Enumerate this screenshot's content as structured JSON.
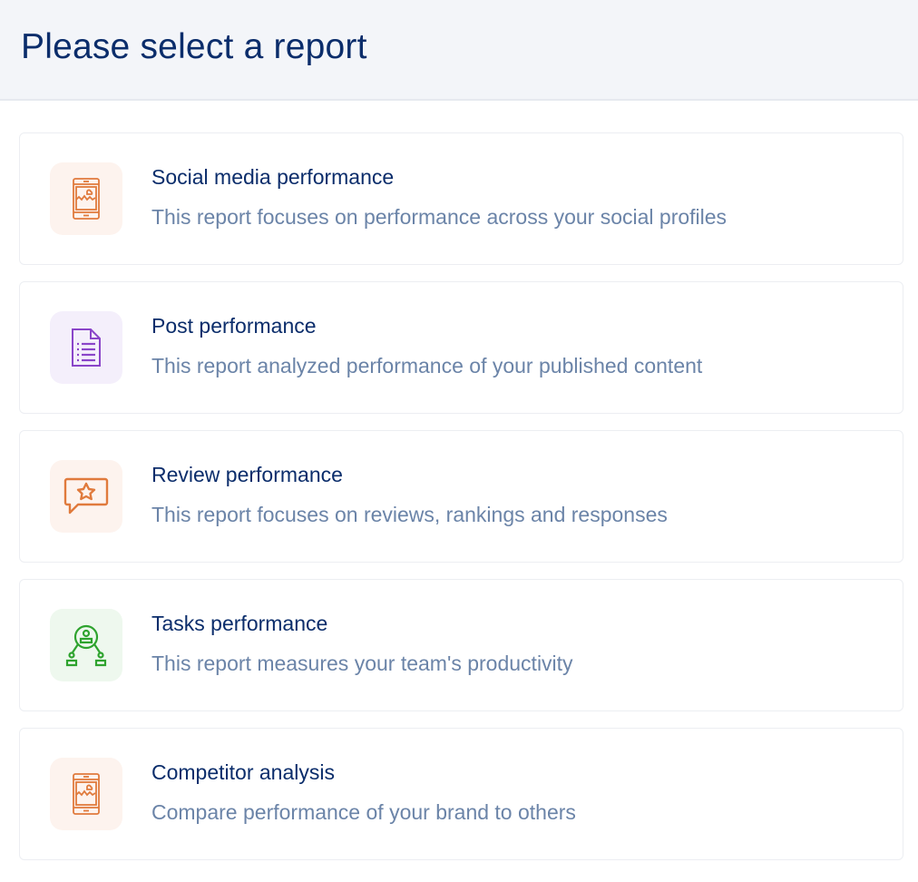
{
  "header": {
    "title": "Please select a report"
  },
  "reports": [
    {
      "title": "Social media performance",
      "description": "This report focuses on performance across your social profiles",
      "icon": "tablet-image-icon",
      "color": "#e07a3c",
      "bg": "#fdf3ee"
    },
    {
      "title": "Post performance",
      "description": "This report analyzed performance of your published content",
      "icon": "document-list-icon",
      "color": "#8a45c9",
      "bg": "#f4effb"
    },
    {
      "title": "Review performance",
      "description": "This report focuses on reviews, rankings and responses",
      "icon": "chat-star-icon",
      "color": "#e07a3c",
      "bg": "#fdf3ee"
    },
    {
      "title": "Tasks performance",
      "description": "This report measures your team's productivity",
      "icon": "team-network-icon",
      "color": "#2ea32e",
      "bg": "#eef8ee"
    },
    {
      "title": "Competitor analysis",
      "description": "Compare performance of your brand to others",
      "icon": "tablet-image-icon",
      "color": "#e07a3c",
      "bg": "#fdf3ee"
    }
  ]
}
